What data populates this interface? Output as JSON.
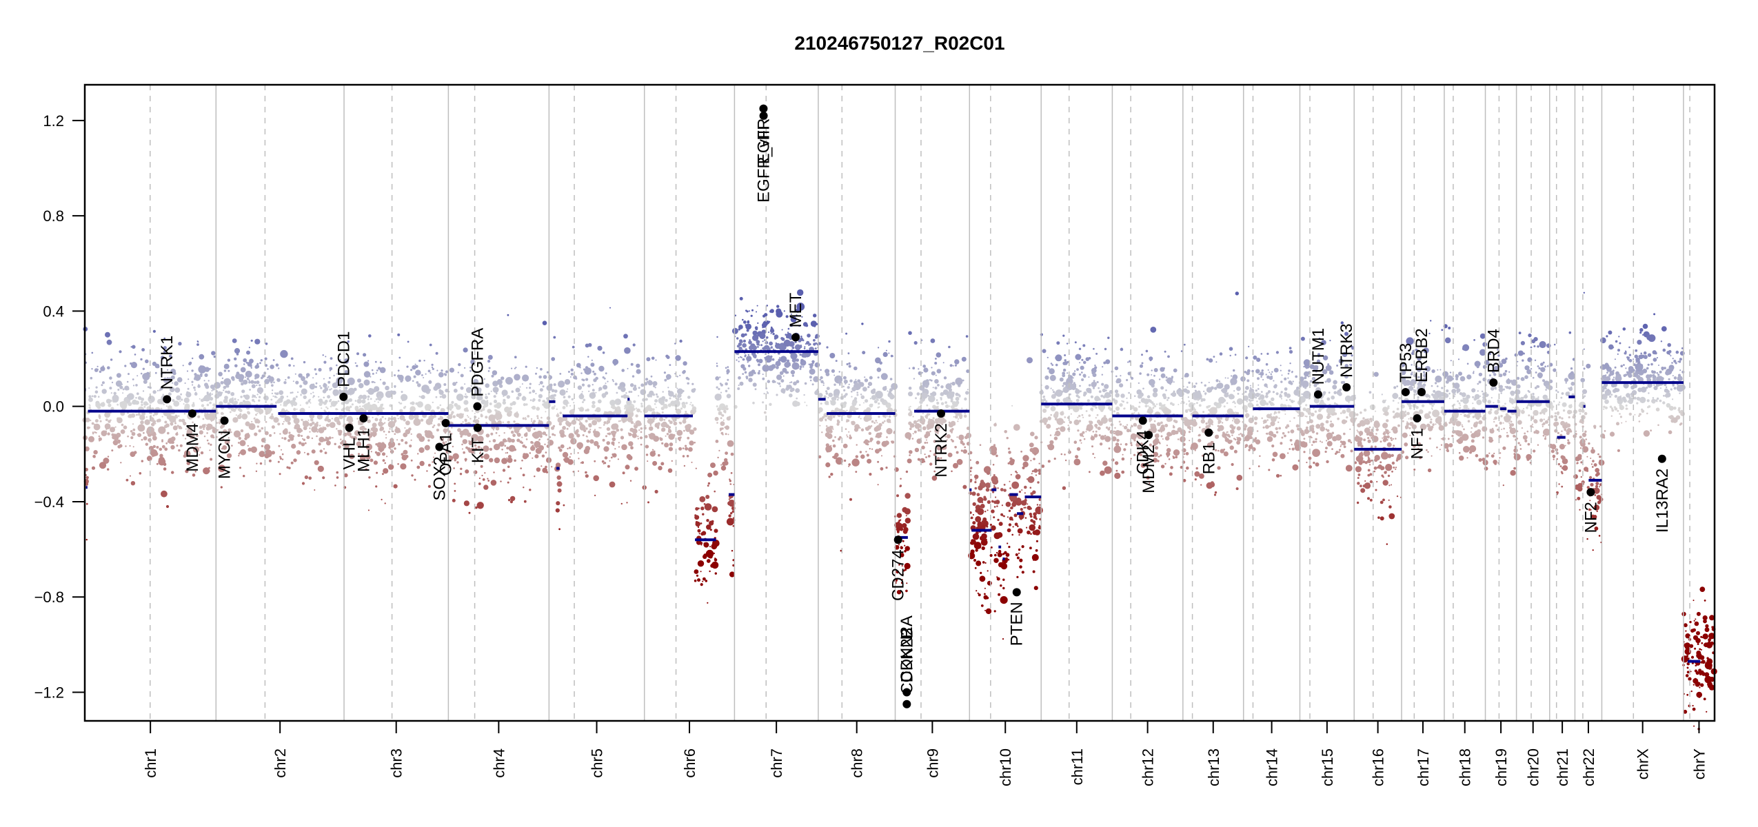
{
  "chart_data": {
    "type": "scatter",
    "title": "210246750127_R02C01",
    "xlabel": "",
    "ylabel": "",
    "ylim": [
      -1.32,
      1.35
    ],
    "yticks": [
      -1.2,
      -0.8,
      -0.4,
      0.0,
      0.4,
      0.8,
      1.2
    ],
    "ytick_labels": [
      "−1.2",
      "−0.8",
      "−0.4",
      "0.0",
      "0.4",
      "0.8",
      "1.2"
    ],
    "grid": false,
    "legend": "none",
    "colors": {
      "gain": "#5a5fae",
      "neutral": "#d9d9d9",
      "loss": "#8b0000",
      "segment": "#00008b",
      "gene_point": "#000000",
      "chr_boundary": "#bebebe",
      "centromere": "#bebebe"
    },
    "chromosomes": [
      {
        "name": "chr1",
        "length_mb": 249,
        "centromere_mb": 124
      },
      {
        "name": "chr2",
        "length_mb": 243,
        "centromere_mb": 93
      },
      {
        "name": "chr3",
        "length_mb": 198,
        "centromere_mb": 91
      },
      {
        "name": "chr4",
        "length_mb": 191,
        "centromere_mb": 50
      },
      {
        "name": "chr5",
        "length_mb": 181,
        "centromere_mb": 48
      },
      {
        "name": "chr6",
        "length_mb": 171,
        "centromere_mb": 60
      },
      {
        "name": "chr7",
        "length_mb": 159,
        "centromere_mb": 60
      },
      {
        "name": "chr8",
        "length_mb": 146,
        "centromere_mb": 45
      },
      {
        "name": "chr9",
        "length_mb": 141,
        "centromere_mb": 49
      },
      {
        "name": "chr10",
        "length_mb": 136,
        "centromere_mb": 40
      },
      {
        "name": "chr11",
        "length_mb": 135,
        "centromere_mb": 53
      },
      {
        "name": "chr12",
        "length_mb": 134,
        "centromere_mb": 35
      },
      {
        "name": "chr13",
        "length_mb": 115,
        "centromere_mb": 18
      },
      {
        "name": "chr14",
        "length_mb": 107,
        "centromere_mb": 18
      },
      {
        "name": "chr15",
        "length_mb": 103,
        "centromere_mb": 19
      },
      {
        "name": "chr16",
        "length_mb": 90,
        "centromere_mb": 36
      },
      {
        "name": "chr17",
        "length_mb": 81,
        "centromere_mb": 24
      },
      {
        "name": "chr18",
        "length_mb": 78,
        "centromere_mb": 17
      },
      {
        "name": "chr19",
        "length_mb": 59,
        "centromere_mb": 26
      },
      {
        "name": "chr20",
        "length_mb": 63,
        "centromere_mb": 28
      },
      {
        "name": "chr21",
        "length_mb": 48,
        "centromere_mb": 13
      },
      {
        "name": "chr22",
        "length_mb": 51,
        "centromere_mb": 15
      },
      {
        "name": "chrX",
        "length_mb": 155,
        "centromere_mb": 60
      },
      {
        "name": "chrY",
        "length_mb": 59,
        "centromere_mb": 12
      }
    ],
    "segments": [
      {
        "chr": "chr1",
        "start": 0,
        "end": 2,
        "value": 0.07
      },
      {
        "chr": "chr1",
        "start": 2,
        "end": 5,
        "value": -0.34
      },
      {
        "chr": "chr1",
        "start": 6,
        "end": 249,
        "value": -0.02
      },
      {
        "chr": "chr2",
        "start": 0,
        "end": 115,
        "value": 0.0
      },
      {
        "chr": "chr2",
        "start": 118,
        "end": 243,
        "value": -0.03
      },
      {
        "chr": "chr3",
        "start": 0,
        "end": 198,
        "value": -0.03
      },
      {
        "chr": "chr4",
        "start": 0,
        "end": 191,
        "value": -0.08
      },
      {
        "chr": "chr5",
        "start": 0,
        "end": 12,
        "value": 0.02
      },
      {
        "chr": "chr5",
        "start": 14,
        "end": 20,
        "value": -0.26
      },
      {
        "chr": "chr5",
        "start": 26,
        "end": 149,
        "value": -0.04
      },
      {
        "chr": "chr5",
        "start": 149,
        "end": 153,
        "value": 0.03
      },
      {
        "chr": "chr6",
        "start": 0,
        "end": 92,
        "value": -0.04
      },
      {
        "chr": "chr6",
        "start": 96,
        "end": 136,
        "value": -0.56
      },
      {
        "chr": "chr6",
        "start": 160,
        "end": 171,
        "value": -0.37
      },
      {
        "chr": "chr7",
        "start": 0,
        "end": 159,
        "value": 0.23
      },
      {
        "chr": "chr8",
        "start": 0,
        "end": 14,
        "value": 0.03
      },
      {
        "chr": "chr8",
        "start": 16,
        "end": 146,
        "value": -0.03
      },
      {
        "chr": "chr9",
        "start": 0,
        "end": 24,
        "value": -0.55
      },
      {
        "chr": "chr9",
        "start": 36,
        "end": 141,
        "value": -0.02
      },
      {
        "chr": "chr10",
        "start": 0,
        "end": 4,
        "value": -0.35
      },
      {
        "chr": "chr10",
        "start": 4,
        "end": 42,
        "value": -0.52
      },
      {
        "chr": "chr10",
        "start": 42,
        "end": 51,
        "value": -0.35
      },
      {
        "chr": "chr10",
        "start": 55,
        "end": 60,
        "value": -0.59
      },
      {
        "chr": "chr10",
        "start": 63,
        "end": 67,
        "value": -0.64
      },
      {
        "chr": "chr10",
        "start": 76,
        "end": 92,
        "value": -0.37
      },
      {
        "chr": "chr10",
        "start": 90,
        "end": 102,
        "value": -0.45
      },
      {
        "chr": "chr10",
        "start": 105,
        "end": 136,
        "value": -0.38
      },
      {
        "chr": "chr11",
        "start": 0,
        "end": 135,
        "value": 0.01
      },
      {
        "chr": "chr12",
        "start": 0,
        "end": 134,
        "value": -0.04
      },
      {
        "chr": "chr13",
        "start": 18,
        "end": 115,
        "value": -0.04
      },
      {
        "chr": "chr14",
        "start": 18,
        "end": 107,
        "value": -0.01
      },
      {
        "chr": "chr15",
        "start": 19,
        "end": 103,
        "value": 0.0
      },
      {
        "chr": "chr16",
        "start": 0,
        "end": 90,
        "value": -0.18
      },
      {
        "chr": "chr17",
        "start": 0,
        "end": 81,
        "value": 0.02
      },
      {
        "chr": "chr18",
        "start": 0,
        "end": 78,
        "value": -0.02
      },
      {
        "chr": "chr19",
        "start": 0,
        "end": 24,
        "value": 0.0
      },
      {
        "chr": "chr19",
        "start": 28,
        "end": 40,
        "value": -0.01
      },
      {
        "chr": "chr19",
        "start": 42,
        "end": 59,
        "value": -0.02
      },
      {
        "chr": "chr20",
        "start": 0,
        "end": 63,
        "value": 0.02
      },
      {
        "chr": "chr21",
        "start": 14,
        "end": 30,
        "value": -0.13
      },
      {
        "chr": "chr21",
        "start": 36,
        "end": 48,
        "value": 0.04
      },
      {
        "chr": "chr22",
        "start": 16,
        "end": 20,
        "value": 0.0
      },
      {
        "chr": "chr22",
        "start": 26,
        "end": 51,
        "value": -0.31
      },
      {
        "chr": "chrX",
        "start": 0,
        "end": 155,
        "value": 0.1
      },
      {
        "chr": "chrY",
        "start": 8,
        "end": 32,
        "value": -1.07
      }
    ],
    "genes": [
      {
        "name": "NTRK1",
        "chr": "chr1",
        "pos": 156,
        "value": 0.03,
        "label_side": "above"
      },
      {
        "name": "MDM4",
        "chr": "chr1",
        "pos": 204,
        "value": -0.03,
        "label_side": "below"
      },
      {
        "name": "MYCN",
        "chr": "chr2",
        "pos": 16,
        "value": -0.06,
        "label_side": "below"
      },
      {
        "name": "PDCD1",
        "chr": "chr2",
        "pos": 242,
        "value": 0.04,
        "label_side": "above"
      },
      {
        "name": "VHL",
        "chr": "chr3",
        "pos": 10,
        "value": -0.09,
        "label_side": "below"
      },
      {
        "name": "MLH1",
        "chr": "chr3",
        "pos": 37,
        "value": -0.05,
        "label_side": "below"
      },
      {
        "name": "SOX2",
        "chr": "chr3",
        "pos": 181,
        "value": -0.17,
        "label_side": "below"
      },
      {
        "name": "OPA1",
        "chr": "chr3",
        "pos": 193,
        "value": -0.07,
        "label_side": "below"
      },
      {
        "name": "PDGFRA",
        "chr": "chr4",
        "pos": 55,
        "value": 0.0,
        "label_side": "above"
      },
      {
        "name": "KIT",
        "chr": "chr4",
        "pos": 55.5,
        "value": -0.09,
        "label_side": "below"
      },
      {
        "name": "EGFR",
        "chr": "chr7",
        "pos": 55,
        "value": 1.25,
        "label_side": "below"
      },
      {
        "name": "EGFR_vIII",
        "chr": "chr7",
        "pos": 55.2,
        "value": 1.22,
        "label_side": "below"
      },
      {
        "name": "MET",
        "chr": "chr7",
        "pos": 116,
        "value": 0.29,
        "label_side": "above"
      },
      {
        "name": "CD274",
        "chr": "chr9",
        "pos": 5.5,
        "value": -0.56,
        "label_side": "below"
      },
      {
        "name": "CDKN2A",
        "chr": "chr9",
        "pos": 21.9,
        "value": -1.2,
        "label_side": "above"
      },
      {
        "name": "CDKN2B",
        "chr": "chr9",
        "pos": 22.0,
        "value": -1.25,
        "label_side": "above"
      },
      {
        "name": "NTRK2",
        "chr": "chr9",
        "pos": 87,
        "value": -0.03,
        "label_side": "below"
      },
      {
        "name": "PTEN",
        "chr": "chr10",
        "pos": 89.6,
        "value": -0.78,
        "label_side": "below"
      },
      {
        "name": "CDK4",
        "chr": "chr12",
        "pos": 58,
        "value": -0.06,
        "label_side": "below"
      },
      {
        "name": "MDM2",
        "chr": "chr12",
        "pos": 69,
        "value": -0.12,
        "label_side": "below"
      },
      {
        "name": "RB1",
        "chr": "chr13",
        "pos": 49,
        "value": -0.11,
        "label_side": "below"
      },
      {
        "name": "NUTM1",
        "chr": "chr15",
        "pos": 34.6,
        "value": 0.05,
        "label_side": "above"
      },
      {
        "name": "NTRK3",
        "chr": "chr15",
        "pos": 88.5,
        "value": 0.08,
        "label_side": "above"
      },
      {
        "name": "TP53",
        "chr": "chr17",
        "pos": 7.6,
        "value": 0.06,
        "label_side": "above"
      },
      {
        "name": "NF1",
        "chr": "chr17",
        "pos": 29.6,
        "value": -0.05,
        "label_side": "below"
      },
      {
        "name": "ERBB2",
        "chr": "chr17",
        "pos": 37.9,
        "value": 0.06,
        "label_side": "above"
      },
      {
        "name": "BRD4",
        "chr": "chr19",
        "pos": 15.4,
        "value": 0.1,
        "label_side": "above"
      },
      {
        "name": "NF2",
        "chr": "chr22",
        "pos": 30,
        "value": -0.36,
        "label_side": "below"
      },
      {
        "name": "IL13RA2",
        "chr": "chrX",
        "pos": 114.3,
        "value": -0.22,
        "label_side": "below"
      }
    ],
    "probe_clouds": [
      {
        "chr": "chr1",
        "level": -0.02,
        "spread": 0.12
      },
      {
        "chr": "chr2",
        "level": -0.01,
        "spread": 0.12
      },
      {
        "chr": "chr3",
        "level": -0.03,
        "spread": 0.12
      },
      {
        "chr": "chr4",
        "level": -0.08,
        "spread": 0.13
      },
      {
        "chr": "chr5",
        "level": -0.04,
        "spread": 0.12
      },
      {
        "chr": "chr6",
        "level": -0.04,
        "spread": 0.12
      },
      {
        "chr": "chr7",
        "level": 0.23,
        "spread": 0.1
      },
      {
        "chr": "chr8",
        "level": -0.03,
        "spread": 0.12
      },
      {
        "chr": "chr9",
        "level": -0.02,
        "spread": 0.12
      },
      {
        "chr": "chr10",
        "level": -0.45,
        "spread": 0.15
      },
      {
        "chr": "chr11",
        "level": 0.01,
        "spread": 0.12
      },
      {
        "chr": "chr12",
        "level": -0.04,
        "spread": 0.12
      },
      {
        "chr": "chr13",
        "level": -0.04,
        "spread": 0.12
      },
      {
        "chr": "chr14",
        "level": -0.01,
        "spread": 0.12
      },
      {
        "chr": "chr15",
        "level": 0.0,
        "spread": 0.12
      },
      {
        "chr": "chr16",
        "level": -0.18,
        "spread": 0.12
      },
      {
        "chr": "chr17",
        "level": 0.02,
        "spread": 0.12
      },
      {
        "chr": "chr18",
        "level": -0.02,
        "spread": 0.12
      },
      {
        "chr": "chr19",
        "level": 0.0,
        "spread": 0.12
      },
      {
        "chr": "chr20",
        "level": 0.02,
        "spread": 0.12
      },
      {
        "chr": "chr21",
        "level": -0.05,
        "spread": 0.12
      },
      {
        "chr": "chr22",
        "level": -0.2,
        "spread": 0.15
      },
      {
        "chrX": "chrX",
        "chr": "chrX",
        "level": 0.1,
        "spread": 0.1
      },
      {
        "chr": "chrY",
        "level": -1.05,
        "spread": 0.1
      }
    ]
  }
}
